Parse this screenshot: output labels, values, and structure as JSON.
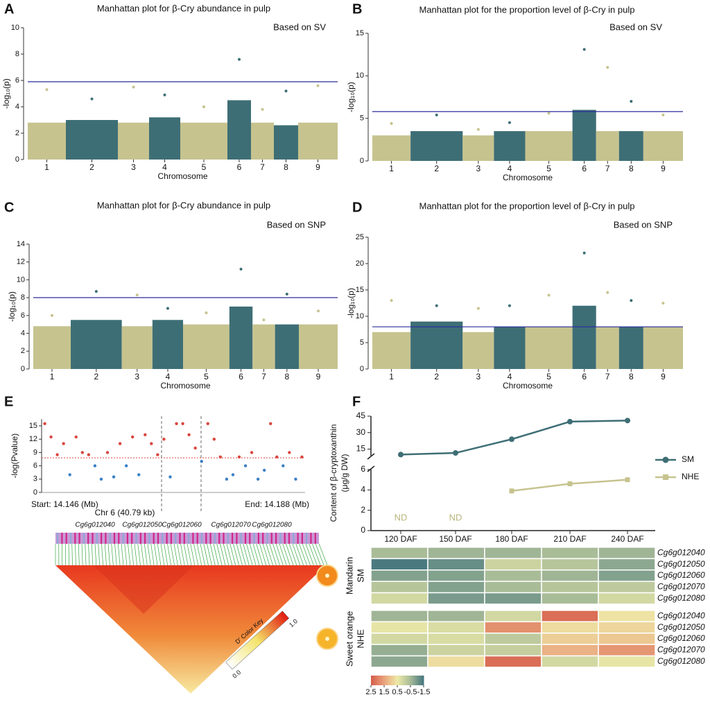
{
  "chart_data": [
    {
      "type": "manhattan",
      "panel": "A",
      "title": "Manhattan plot for β-Cry abundance in pulp",
      "subtitle": "Based on SV",
      "x_label": "Chromosome",
      "y_label": "-log₁₀(p)",
      "categories": [
        "1",
        "2",
        "3",
        "4",
        "5",
        "6",
        "7",
        "8",
        "9"
      ],
      "values": [
        5.3,
        4.6,
        5.5,
        4.9,
        4.0,
        7.6,
        3.8,
        5.2,
        5.6
      ],
      "bulk": [
        2.8,
        3.0,
        2.8,
        3.2,
        2.8,
        4.5,
        2.8,
        2.6,
        2.8
      ],
      "threshold": 5.9,
      "colors": [
        "#c6c38f",
        "#3e6e75"
      ],
      "ylim": [
        0,
        10
      ],
      "yticks": [
        0,
        2,
        4,
        6,
        8,
        10
      ]
    },
    {
      "type": "manhattan",
      "panel": "B",
      "title": "Manhattan plot for the proportion level of β-Cry in pulp",
      "subtitle": "Based on SV",
      "x_label": "Chromosome",
      "y_label": "-log₁₀(p)",
      "categories": [
        "1",
        "2",
        "3",
        "4",
        "5",
        "6",
        "7",
        "8",
        "9"
      ],
      "values": [
        4.4,
        5.4,
        3.7,
        4.5,
        5.6,
        13.1,
        11.0,
        7.0,
        5.4
      ],
      "bulk": [
        3.0,
        3.5,
        3.0,
        3.5,
        3.5,
        6.0,
        3.5,
        3.5,
        3.5
      ],
      "threshold": 5.8,
      "colors": [
        "#c6c38f",
        "#3e6e75"
      ],
      "ylim": [
        0,
        15
      ],
      "yticks": [
        0,
        5,
        10,
        15
      ]
    },
    {
      "type": "manhattan",
      "panel": "C",
      "title": "Manhattan plot for β-Cry abundance in pulp",
      "subtitle": "Based on SNP",
      "x_label": "Chromosome",
      "y_label": "-log₁₀(p)",
      "categories": [
        "1",
        "2",
        "3",
        "4",
        "5",
        "6",
        "7",
        "8",
        "9"
      ],
      "values": [
        6.0,
        8.7,
        8.3,
        6.8,
        6.3,
        11.2,
        5.5,
        8.4,
        6.5
      ],
      "bulk": [
        4.8,
        5.5,
        4.8,
        5.5,
        5.0,
        7.0,
        5.0,
        5.0,
        5.0
      ],
      "threshold": 8,
      "colors": [
        "#c6c38f",
        "#3e6e75"
      ],
      "ylim": [
        0,
        14
      ],
      "yticks": [
        0,
        2,
        4,
        6,
        8,
        10,
        12,
        14
      ]
    },
    {
      "type": "manhattan",
      "panel": "D",
      "title": "Manhattan plot for the proportion level of β-Cry in pulp",
      "subtitle": "Based on SNP",
      "x_label": "Chromosome",
      "y_label": "-log₁₀(p)",
      "categories": [
        "1",
        "2",
        "3",
        "4",
        "5",
        "6",
        "7",
        "8",
        "9"
      ],
      "values": [
        13,
        12,
        11.5,
        12,
        14,
        22,
        14.5,
        13,
        12.5
      ],
      "bulk": [
        7,
        9,
        7,
        8,
        8,
        12,
        8,
        8,
        8
      ],
      "threshold": 8,
      "colors": [
        "#c6c38f",
        "#3e6e75"
      ],
      "ylim": [
        0,
        25
      ],
      "yticks": [
        0,
        5,
        10,
        15,
        20,
        25
      ]
    },
    {
      "type": "region",
      "panel": "E",
      "y_label": "-log(Pvalue)",
      "start_label": "Start: 14.146 (Mb)",
      "end_label": "End: 14.188 (Mb)",
      "region_label": "Chr 6 (40.79 kb)",
      "genes": [
        "Cg6g012040",
        "Cg6g012050",
        "Cg6g012060",
        "Cg6g012070",
        "Cg6g012080"
      ],
      "xlim": [
        14.146,
        14.188
      ],
      "ylim": [
        0,
        16.5
      ],
      "yticks": [
        0,
        3,
        6,
        9,
        12,
        15
      ],
      "threshold": 7.8,
      "colors": [
        "#d9463e",
        "#3b7fc4"
      ],
      "x": [
        14.1465,
        14.1475,
        14.1485,
        14.1495,
        14.1505,
        14.1515,
        14.1525,
        14.1535,
        14.1545,
        14.1555,
        14.1565,
        14.1575,
        14.1585,
        14.1595,
        14.1605,
        14.1615,
        14.1625,
        14.1635,
        14.1645,
        14.1655,
        14.1665,
        14.1675,
        14.1685,
        14.1695,
        14.1705,
        14.1715,
        14.1725,
        14.1735,
        14.1745,
        14.1755,
        14.1765,
        14.1775,
        14.1785,
        14.1795,
        14.1805,
        14.1815,
        14.1825,
        14.1835,
        14.1845,
        14.1855,
        14.1865,
        14.1875
      ],
      "values": [
        15.5,
        12.5,
        8.5,
        11,
        4,
        12.5,
        9,
        8.5,
        6,
        3,
        9,
        3.5,
        11,
        6,
        12.5,
        4,
        13,
        11,
        8.5,
        12,
        3.5,
        15.5,
        15.5,
        13,
        10,
        7,
        15.5,
        12,
        8,
        3,
        4,
        8,
        6,
        9,
        3,
        5,
        15.5,
        8,
        6,
        9,
        3,
        8
      ],
      "ld_key_label": "D' Color Key",
      "ld_key_ticks": [
        {
          "value": 0,
          "label": "0.0"
        },
        {
          "value": 1,
          "label": "1.0"
        }
      ]
    },
    {
      "type": "line",
      "panel": "F",
      "y_label": [
        "Content of β-cryptoxanthin",
        "(μg/g DW)"
      ],
      "categories": [
        "120 DAF",
        "150 DAF",
        "180 DAF",
        "210 DAF",
        "240 DAF"
      ],
      "series": [
        {
          "name": "SM",
          "color": "#3e6e75",
          "values": [
            10,
            11.5,
            24,
            40,
            41
          ]
        },
        {
          "name": "NHE",
          "color": "#c6c38f",
          "values": [
            null,
            null,
            3.9,
            4.6,
            5.0
          ]
        }
      ],
      "annotations": [
        {
          "text": "ND",
          "x": "120 DAF"
        },
        {
          "text": "ND",
          "x": "150 DAF"
        }
      ],
      "ylim": [
        0,
        6
      ],
      "yticks": [
        0,
        2,
        4,
        6
      ],
      "ylim_upper": [
        9,
        45
      ],
      "yticks_upper": [
        15,
        30,
        45
      ]
    },
    {
      "type": "heatmap",
      "rows": [
        "Cg6g012040",
        "Cg6g012050",
        "Cg6g012060",
        "Cg6g012070",
        "Cg6g012080"
      ],
      "groups": [
        {
          "name": [
            "Mandarin",
            "SM"
          ],
          "values": [
            [
              -0.5,
              -0.6,
              -0.6,
              -0.5,
              -0.6
            ],
            [
              -1.5,
              -1.2,
              0.0,
              -0.3,
              -0.8
            ],
            [
              -0.9,
              -0.9,
              -0.5,
              -0.6,
              -0.9
            ],
            [
              -0.3,
              -0.9,
              -0.5,
              -0.3,
              -0.2
            ],
            [
              0.1,
              -1.0,
              -1.0,
              -0.5,
              0.1
            ]
          ]
        },
        {
          "name": [
            "Sweet orange",
            "NHE"
          ],
          "values": [
            [
              -0.6,
              -0.6,
              0.1,
              2.3,
              0.6
            ],
            [
              0.4,
              0.2,
              1.8,
              0.7,
              0.8
            ],
            [
              0.1,
              0.2,
              -0.2,
              0.9,
              1.0
            ],
            [
              -0.7,
              0.0,
              -0.1,
              1.3,
              1.7
            ],
            [
              -0.8,
              0.7,
              2.3,
              0.1,
              0.4
            ]
          ]
        }
      ],
      "colorscale": {
        "stops": [
          2.5,
          1.5,
          0.5,
          -0.5,
          -1.5
        ],
        "colors": [
          "#d6604d",
          "#e9a47c",
          "#eeeaa8",
          "#a9bc98",
          "#4a7a80"
        ]
      }
    }
  ]
}
